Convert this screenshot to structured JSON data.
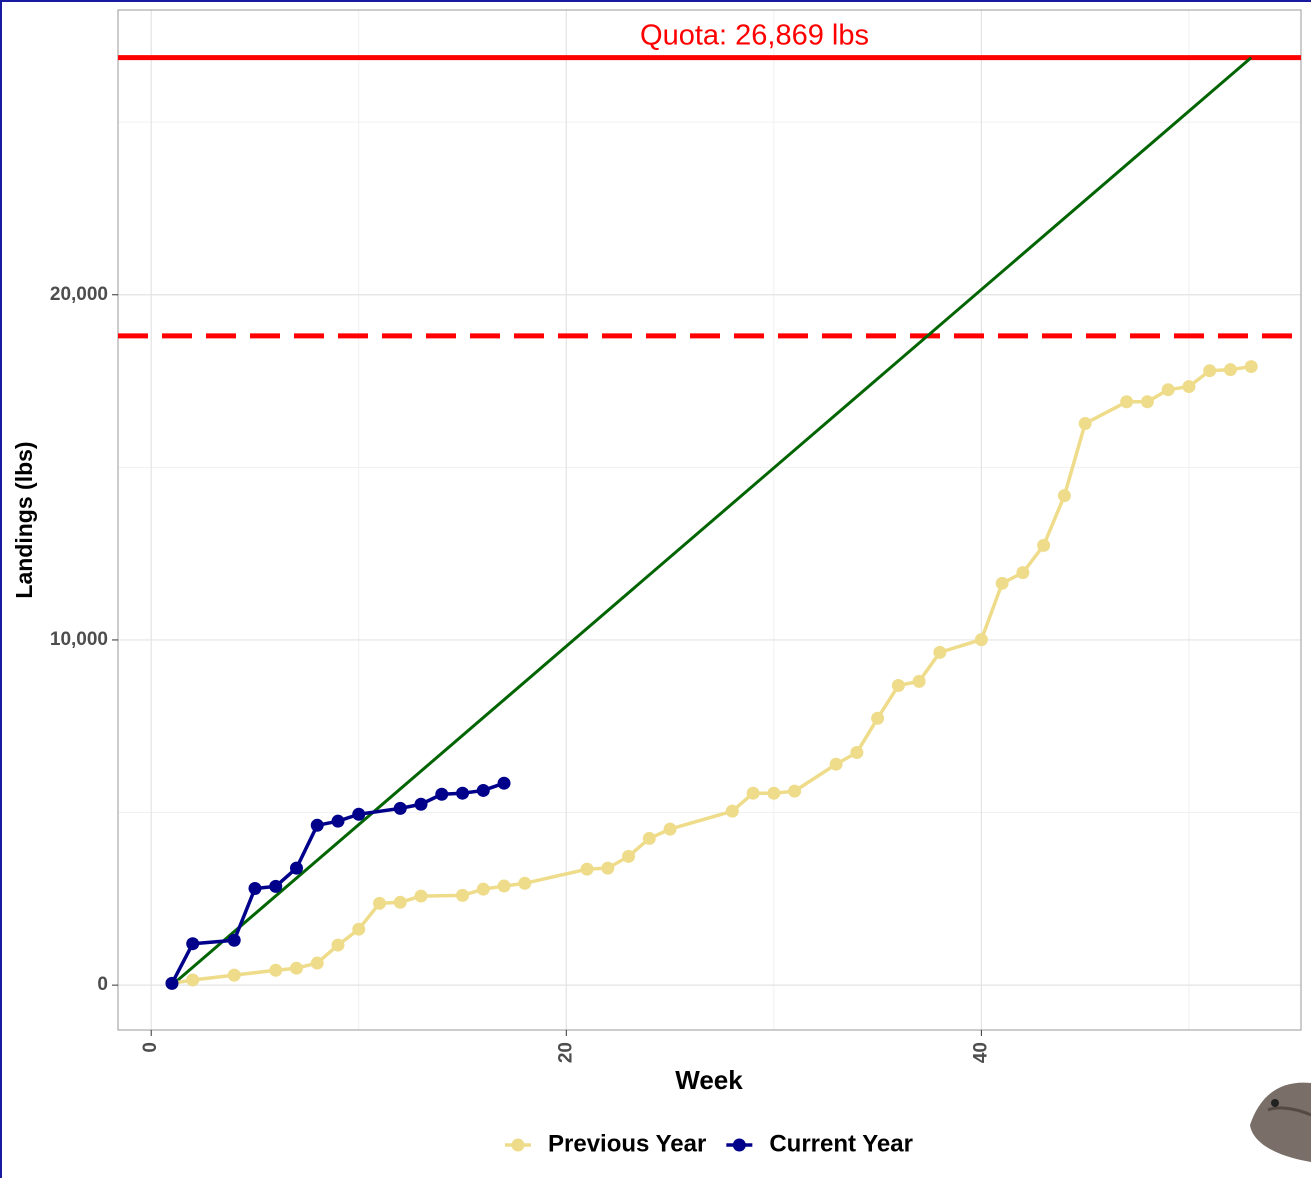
{
  "chart_data": {
    "type": "line",
    "x_label": "Week",
    "y_label": "Landings (lbs)",
    "xlim": [
      -1.6,
      55.4
    ],
    "ylim": [
      -1300,
      28250
    ],
    "xticks": [
      0,
      20,
      40
    ],
    "yticks": [
      0,
      {
        "value": 10000,
        "label": "10,000"
      },
      {
        "value": 20000,
        "label": "20,000"
      }
    ],
    "minor_xticks": [
      10,
      30,
      50
    ],
    "minor_yticks": [
      5000,
      15000,
      25000
    ],
    "grid": true,
    "legend": "bottom",
    "quota": {
      "value": 26869,
      "label": "Quota: 26,869 lbs",
      "color": "#ff0000"
    },
    "threshold": {
      "value": 18808,
      "color": "#ff0000",
      "style": "dashed"
    },
    "target_line": {
      "x": [
        1,
        53
      ],
      "values": [
        0,
        26869
      ],
      "color": "#006400"
    },
    "series": [
      {
        "name": "Previous Year",
        "color": "#eedc8a",
        "x": [
          1,
          2,
          4,
          6,
          7,
          8,
          9,
          10,
          11,
          12,
          13,
          15,
          16,
          17,
          18,
          21,
          22,
          23,
          24,
          25,
          28,
          29,
          30,
          31,
          33,
          34,
          35,
          36,
          37,
          38,
          40,
          41,
          42,
          43,
          44,
          45,
          47,
          48,
          49,
          50,
          51,
          52,
          53
        ],
        "values": [
          50,
          150,
          290,
          430,
          490,
          640,
          1160,
          1620,
          2370,
          2400,
          2580,
          2600,
          2780,
          2870,
          2950,
          3360,
          3390,
          3730,
          4250,
          4520,
          5040,
          5560,
          5560,
          5620,
          6400,
          6740,
          7730,
          8680,
          8800,
          9640,
          10010,
          11640,
          11950,
          12740,
          14180,
          16270,
          16900,
          16900,
          17250,
          17340,
          17800,
          17830,
          17920
        ]
      },
      {
        "name": "Current Year",
        "color": "#00008b",
        "x": [
          1,
          2,
          4,
          5,
          6,
          7,
          8,
          9,
          10,
          12,
          13,
          14,
          15,
          16,
          17
        ],
        "values": [
          50,
          1200,
          1300,
          2800,
          2860,
          3390,
          4630,
          4750,
          4950,
          5120,
          5240,
          5530,
          5560,
          5640,
          5850
        ]
      }
    ]
  }
}
